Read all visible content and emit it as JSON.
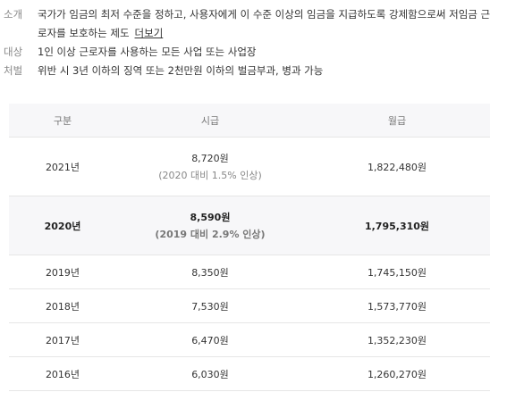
{
  "info": {
    "intro_label": "소개",
    "intro_text": "국가가 임금의 최저 수준을 정하고, 사용자에게 이 수준 이상의 임금을 지급하도록 강제함으로써 저임금 근로자를 보호하는 제도",
    "more_link": "더보기",
    "target_label": "대상",
    "target_text": "1인 이상 근로자를 사용하는 모든 사업 또는 사업장",
    "penalty_label": "처벌",
    "penalty_text": "위반 시 3년 이하의 징역 또는 2천만원 이하의 벌금부과, 병과 가능"
  },
  "table": {
    "headers": [
      "구분",
      "시급",
      "월급"
    ],
    "rows": [
      {
        "year": "2021년",
        "hourly": "8,720원",
        "note": "(2020 대비 1.5% 인상)",
        "monthly": "1,822,480원"
      },
      {
        "year": "2020년",
        "hourly": "8,590원",
        "note": "(2019 대비 2.9% 인상)",
        "monthly": "1,795,310원"
      },
      {
        "year": "2019년",
        "hourly": "8,350원",
        "note": "",
        "monthly": "1,745,150원"
      },
      {
        "year": "2018년",
        "hourly": "7,530원",
        "note": "",
        "monthly": "1,573,770원"
      },
      {
        "year": "2017년",
        "hourly": "6,470원",
        "note": "",
        "monthly": "1,352,230원"
      },
      {
        "year": "2016년",
        "hourly": "6,030원",
        "note": "",
        "monthly": "1,260,270원"
      }
    ]
  },
  "colors": {
    "header_bg": "#f7f7f9",
    "highlight_bg": "#f7f7f9",
    "border": "#e6e6e6",
    "label_gray": "#888888"
  }
}
